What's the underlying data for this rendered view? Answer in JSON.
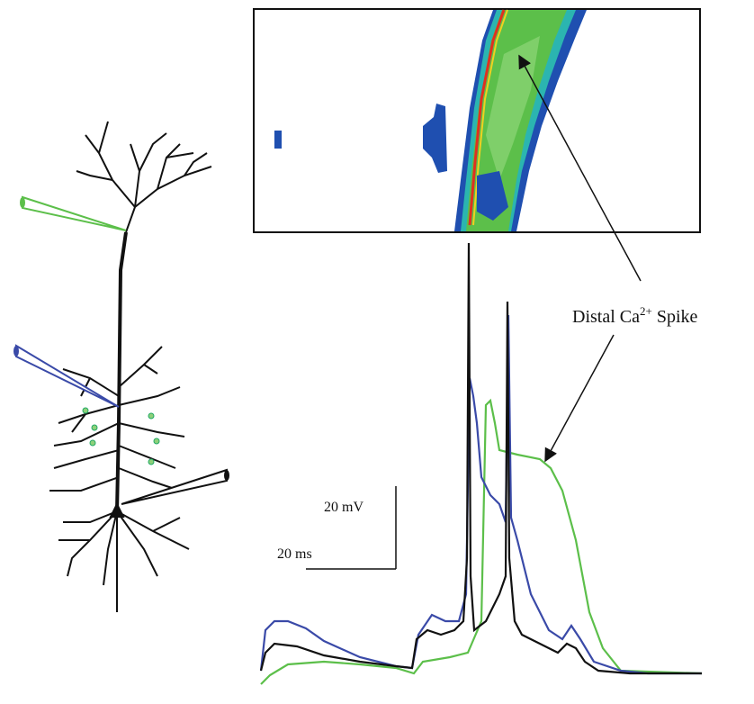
{
  "annotation": {
    "prefix": "Distal Ca",
    "superscript": "2+",
    "suffix": "Spike"
  },
  "scale_bar": {
    "voltage": "20 mV",
    "time": "20 ms"
  }
}
